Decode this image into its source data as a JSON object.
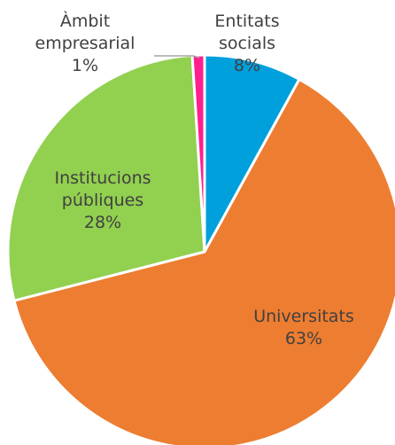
{
  "chart_data": {
    "type": "pie",
    "title": "",
    "slices": [
      {
        "name": "Entitats socials",
        "label_lines": [
          "Entitats",
          "socials"
        ],
        "pct_label": "8%",
        "value": 8,
        "color": "#00a0dc",
        "label_color": "#404040"
      },
      {
        "name": "Universitats",
        "label_lines": [
          "Universitats"
        ],
        "pct_label": "63%",
        "value": 63,
        "color": "#ed7d31",
        "label_color": "#404040"
      },
      {
        "name": "Institucions públiques",
        "label_lines": [
          "Institucions",
          "públiques"
        ],
        "pct_label": "28%",
        "value": 28,
        "color": "#92d050",
        "label_color": "#404040"
      },
      {
        "name": "Àmbit empresarial",
        "label_lines": [
          "Àmbit",
          "empresarial"
        ],
        "pct_label": "1%",
        "value": 1,
        "color": "#ff1f8e",
        "label_color": "#404040"
      }
    ]
  }
}
